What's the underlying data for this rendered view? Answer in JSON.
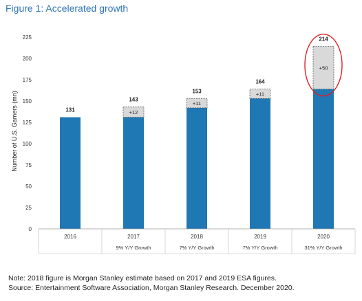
{
  "figure": {
    "title": "Figure 1: Accelerated growth"
  },
  "chart_data": {
    "type": "bar",
    "stacked": true,
    "categories": [
      "2016",
      "2017",
      "2018",
      "2019",
      "2020"
    ],
    "subcategory_labels": [
      "",
      "9% Y/Y Growth",
      "7% Y/Y Growth",
      "7% Y/Y Growth",
      "31% Y/Y Growth"
    ],
    "series": [
      {
        "values": [
          131,
          131,
          142,
          153,
          164
        ],
        "color": "#1f77b4"
      },
      {
        "values": [
          0,
          12,
          11,
          11,
          50
        ],
        "color": "#d9d9d9",
        "increment_labels": [
          "",
          "+12",
          "+11",
          "+11",
          "+50"
        ]
      }
    ],
    "total_labels": [
      "131",
      "143",
      "153",
      "164",
      "214"
    ],
    "ylabel": "Number of U.S. Gamers (mn)",
    "xlabel": "",
    "ylim": [
      0,
      225
    ],
    "yticks": [
      0,
      25,
      50,
      75,
      100,
      125,
      150,
      175,
      200,
      225
    ],
    "grid": false,
    "highlight": {
      "category": "2020",
      "shape": "ellipse",
      "color": "#e02020"
    }
  },
  "notes": {
    "line1": "Note: 2018 figure is Morgan Stanley estimate based on 2017 and 2019 ESA figures.",
    "line2": "Source: Entertainment Software Association, Morgan Stanley Research. December 2020."
  }
}
